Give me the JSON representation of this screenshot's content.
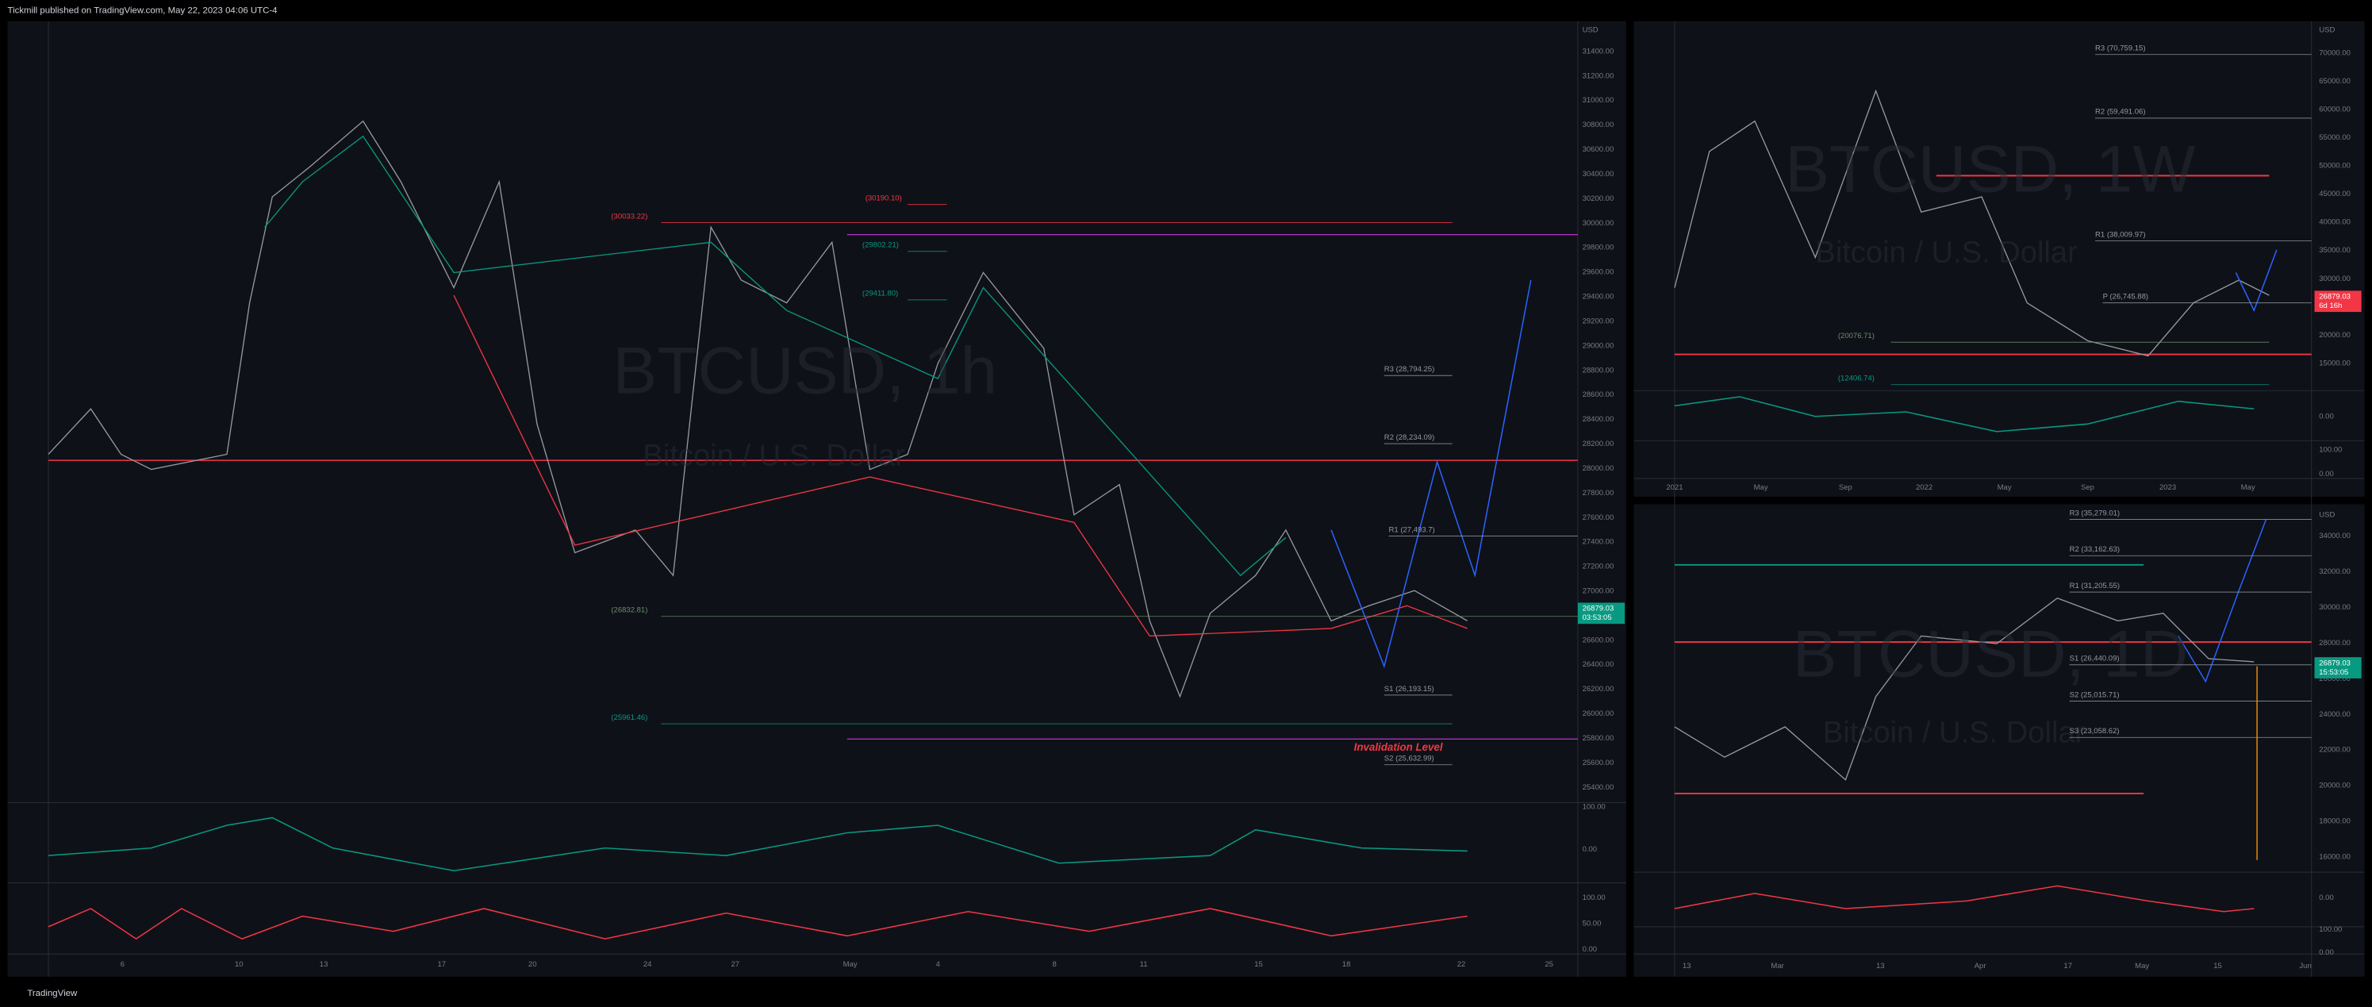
{
  "header": {
    "publisher": "Tickmill published on TradingView.com, May 22, 2023 04:06 UTC-4"
  },
  "panels": [
    {
      "watermark": "BTCUSD, 1h",
      "subtitle": "Bitcoin / U.S. Dollar",
      "currency": "USD",
      "price_axis": [
        "31400.00",
        "31200.00",
        "31000.00",
        "30800.00",
        "30600.00",
        "30400.00",
        "30200.00",
        "30000.00",
        "29800.00",
        "29600.00",
        "29400.00",
        "29200.00",
        "29000.00",
        "28800.00",
        "28600.00",
        "28400.00",
        "28200.00",
        "28000.00",
        "27800.00",
        "27600.00",
        "27400.00",
        "27200.00",
        "27000.00",
        "26800.00",
        "26600.00",
        "26400.00",
        "26200.00",
        "26000.00",
        "25800.00",
        "25600.00",
        "25400.00"
      ],
      "time_axis": [
        "6",
        "10",
        "13",
        "17",
        "20",
        "24",
        "27",
        "May",
        "4",
        "8",
        "11",
        "15",
        "18",
        "22",
        "25"
      ],
      "levels": [
        {
          "label": "(30190.10)",
          "color": "#f23645"
        },
        {
          "label": "(30033.22)",
          "color": "#f23645"
        },
        {
          "label": "(29802.21)",
          "color": "#089981"
        },
        {
          "label": "(29411.80)",
          "color": "#089981"
        },
        {
          "label": "R3 (28,794.25)",
          "color": "#9598a1"
        },
        {
          "label": "R2 (28,234.09)",
          "color": "#9598a1"
        },
        {
          "label": "R1 (27,493.7)",
          "color": "#9598a1"
        },
        {
          "label": "(26832.81)",
          "color": "#6b8f6b"
        },
        {
          "label": "S1 (26,193.15)",
          "color": "#9598a1"
        },
        {
          "label": "(25961.46)",
          "color": "#089981"
        },
        {
          "label": "Invalidation Level",
          "color": "#f23645"
        },
        {
          "label": "S2 (25,632.99)",
          "color": "#9598a1"
        }
      ],
      "price": "26879.03",
      "countdown": "03:53:05",
      "oscillator_axis": [
        "100.00",
        "0.00",
        "100.00",
        "50.00",
        "0.00"
      ]
    },
    {
      "watermark": "BTCUSD, 1W",
      "subtitle": "Bitcoin / U.S. Dollar",
      "currency": "USD",
      "price_axis": [
        "70000.00",
        "65000.00",
        "60000.00",
        "55000.00",
        "50000.00",
        "45000.00",
        "40000.00",
        "35000.00",
        "30000.00",
        "25000.00",
        "20000.00",
        "15000.00"
      ],
      "time_axis": [
        "2021",
        "May",
        "Sep",
        "2022",
        "May",
        "Sep",
        "2023",
        "May"
      ],
      "levels": [
        {
          "label": "R3 (70,759.15)",
          "color": "#9598a1"
        },
        {
          "label": "R2 (59,491.06)",
          "color": "#9598a1"
        },
        {
          "label": "R1 (38,009.97)",
          "color": "#9598a1"
        },
        {
          "label": "P (26,745.88)",
          "color": "#9598a1"
        },
        {
          "label": "(20076.71)",
          "color": "#6b8f6b"
        },
        {
          "label": "(12406.74)",
          "color": "#089981"
        }
      ],
      "price": "26879.03",
      "countdown": "6d 16h",
      "oscillator_axis": [
        "0.00",
        "100.00",
        "0.00"
      ]
    },
    {
      "watermark": "BTCUSD, 1D",
      "subtitle": "Bitcoin / U.S. Dollar",
      "currency": "USD",
      "price_axis": [
        "34000.00",
        "32000.00",
        "30000.00",
        "28000.00",
        "26000.00",
        "24000.00",
        "22000.00",
        "20000.00",
        "18000.00",
        "16000.00"
      ],
      "time_axis": [
        "13",
        "Mar",
        "13",
        "Apr",
        "17",
        "May",
        "15",
        "Jun"
      ],
      "levels": [
        {
          "label": "R3 (35,279.01)",
          "color": "#9598a1"
        },
        {
          "label": "R2 (33,162.63)",
          "color": "#9598a1"
        },
        {
          "label": "R1 (31,205.55)",
          "color": "#9598a1"
        },
        {
          "label": "S1 (26,440.09)",
          "color": "#9598a1"
        },
        {
          "label": "S2 (25,015.71)",
          "color": "#9598a1"
        },
        {
          "label": "S3 (23,058.62)",
          "color": "#9598a1"
        }
      ],
      "price": "26879.03",
      "countdown": "15:53:05",
      "oscillator_axis": [
        "0.00",
        "100.00",
        "0.00"
      ]
    }
  ],
  "footer": {
    "brand": "TradingView"
  }
}
